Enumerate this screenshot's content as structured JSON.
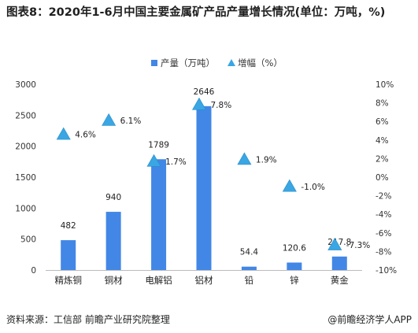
{
  "title": "图表8：2020年1-6月中国主要金属矿产品产量增长情况(单位：万吨，%)",
  "footer": {
    "source": "资料来源：工信部 前瞻产业研究院整理",
    "brand": "@前瞻经济学人APP"
  },
  "colors": {
    "bar": "#4287e6",
    "triangle": "#3aa6e3",
    "triangle_stroke": "#2a8fc8"
  },
  "chart_data": {
    "type": "bar",
    "categories": [
      "精炼铜",
      "铜材",
      "电解铝",
      "铝材",
      "铅",
      "锌",
      "黄金"
    ],
    "series": [
      {
        "name": "产量（万吨）",
        "type": "bar",
        "axis": "left",
        "values": [
          482,
          940,
          1789,
          2646,
          54.4,
          120.6,
          217.8
        ],
        "labels": [
          "482",
          "940",
          "1789",
          "2646",
          "54.4",
          "120.6",
          "217.8"
        ]
      },
      {
        "name": "增幅（%）",
        "type": "scatter",
        "marker": "triangle",
        "axis": "right",
        "values": [
          4.6,
          6.1,
          1.7,
          7.8,
          1.9,
          -1.0,
          -7.3
        ],
        "labels": [
          "4.6%",
          "6.1%",
          "1.7%",
          "7.8%",
          "1.9%",
          "-1.0%",
          "-7.3%"
        ]
      }
    ],
    "y_left": {
      "lim": [
        0,
        3000
      ],
      "ticks": [
        0,
        500,
        1000,
        1500,
        2000,
        2500,
        3000
      ],
      "tick_labels": [
        "0",
        "500",
        "1000",
        "1500",
        "2000",
        "2500",
        "3000"
      ]
    },
    "y_right": {
      "lim": [
        -10,
        10
      ],
      "ticks": [
        -10,
        -8,
        -6,
        -4,
        -2,
        0,
        2,
        4,
        6,
        8,
        10
      ],
      "tick_labels": [
        "-10%",
        "-8%",
        "-6%",
        "-4%",
        "-2%",
        "0%",
        "2%",
        "4%",
        "6%",
        "8%",
        "10%"
      ]
    },
    "legend_position": "top-center",
    "grid": false
  }
}
